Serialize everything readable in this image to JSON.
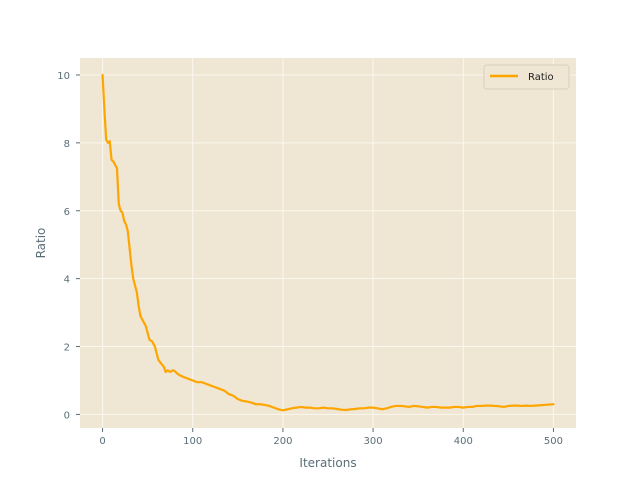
{
  "chart_data": {
    "type": "line",
    "title": "",
    "xlabel": "Iterations",
    "ylabel": "Ratio",
    "xlim": [
      -25,
      525
    ],
    "ylim": [
      -0.4,
      10.5
    ],
    "x_ticks": [
      0,
      100,
      200,
      300,
      400,
      500
    ],
    "y_ticks": [
      0,
      2,
      4,
      6,
      8,
      10
    ],
    "grid": true,
    "legend_position": "upper right",
    "colors": {
      "plot_background": "#efe6d3",
      "grid": "#fbf8f0",
      "axis_text": "#5a6e78",
      "spine": "#d9cfbb"
    },
    "series": [
      {
        "name": "Ratio",
        "color": "#ffa500",
        "x": [
          0,
          2,
          4,
          6,
          8,
          10,
          12,
          14,
          16,
          18,
          20,
          22,
          24,
          26,
          28,
          30,
          32,
          34,
          36,
          38,
          40,
          42,
          45,
          48,
          50,
          52,
          55,
          58,
          60,
          62,
          65,
          68,
          70,
          72,
          75,
          78,
          80,
          83,
          86,
          90,
          95,
          100,
          105,
          110,
          115,
          120,
          125,
          130,
          135,
          140,
          145,
          150,
          155,
          160,
          165,
          170,
          175,
          180,
          185,
          190,
          195,
          200,
          205,
          210,
          215,
          220,
          225,
          230,
          235,
          240,
          245,
          250,
          255,
          260,
          265,
          270,
          275,
          280,
          285,
          290,
          295,
          300,
          305,
          310,
          315,
          320,
          325,
          330,
          335,
          340,
          345,
          350,
          355,
          360,
          365,
          370,
          375,
          380,
          385,
          390,
          395,
          400,
          405,
          410,
          415,
          420,
          425,
          430,
          435,
          440,
          445,
          450,
          455,
          460,
          465,
          470,
          475,
          480,
          485,
          490,
          495,
          500
        ],
        "y": [
          10.0,
          9.0,
          8.1,
          8.0,
          8.05,
          7.5,
          7.45,
          7.35,
          7.25,
          6.2,
          6.0,
          5.95,
          5.7,
          5.6,
          5.4,
          4.9,
          4.4,
          4.0,
          3.8,
          3.6,
          3.2,
          2.9,
          2.75,
          2.6,
          2.4,
          2.2,
          2.15,
          2.0,
          1.8,
          1.6,
          1.5,
          1.4,
          1.25,
          1.3,
          1.25,
          1.3,
          1.28,
          1.2,
          1.15,
          1.1,
          1.05,
          1.0,
          0.95,
          0.95,
          0.9,
          0.85,
          0.8,
          0.75,
          0.7,
          0.6,
          0.55,
          0.45,
          0.4,
          0.38,
          0.35,
          0.3,
          0.3,
          0.28,
          0.25,
          0.2,
          0.15,
          0.12,
          0.15,
          0.18,
          0.2,
          0.22,
          0.2,
          0.2,
          0.18,
          0.18,
          0.2,
          0.18,
          0.18,
          0.16,
          0.14,
          0.13,
          0.15,
          0.16,
          0.18,
          0.18,
          0.2,
          0.2,
          0.18,
          0.15,
          0.18,
          0.22,
          0.25,
          0.25,
          0.24,
          0.22,
          0.25,
          0.24,
          0.22,
          0.2,
          0.22,
          0.22,
          0.2,
          0.2,
          0.2,
          0.22,
          0.22,
          0.2,
          0.22,
          0.22,
          0.25,
          0.25,
          0.26,
          0.26,
          0.25,
          0.24,
          0.22,
          0.25,
          0.26,
          0.26,
          0.25,
          0.26,
          0.25,
          0.26,
          0.27,
          0.28,
          0.29,
          0.3
        ]
      }
    ]
  }
}
